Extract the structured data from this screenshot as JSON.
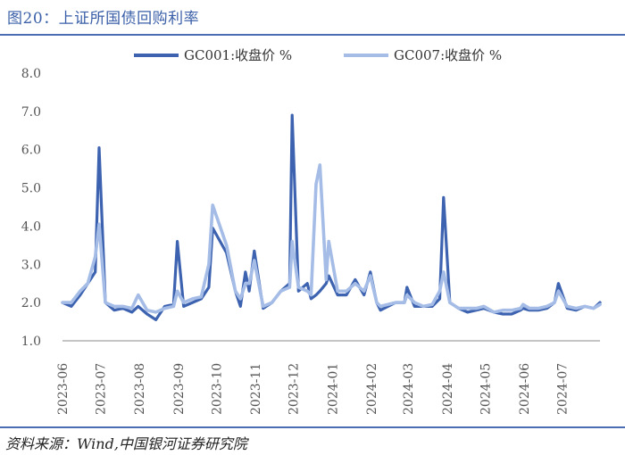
{
  "header": {
    "title": "图20：上证所国债回购利率"
  },
  "footer": {
    "source": "资料来源：Wind,中国银河证券研究院"
  },
  "colors": {
    "gc001": "#3d63b0",
    "gc007": "#a4bce6",
    "rule": "#4a6db3"
  },
  "chart_data": {
    "type": "line",
    "title": "",
    "xlabel": "",
    "ylabel": "",
    "ylim": [
      1.0,
      8.0
    ],
    "yticks": [
      "1.0",
      "2.0",
      "3.0",
      "4.0",
      "5.0",
      "6.0",
      "7.0",
      "8.0"
    ],
    "xticks": [
      "2023-06",
      "2023-07",
      "2023-08",
      "2023-09",
      "2023-10",
      "2023-11",
      "2023-12",
      "2024-01",
      "2024-02",
      "2024-03",
      "2024-04",
      "2024-05",
      "2024-06",
      "2024-07"
    ],
    "legend_position": "top",
    "x": [
      "2023-06-01",
      "2023-06-08",
      "2023-06-15",
      "2023-06-21",
      "2023-06-27",
      "2023-06-30",
      "2023-07-05",
      "2023-07-12",
      "2023-07-19",
      "2023-07-26",
      "2023-07-31",
      "2023-08-07",
      "2023-08-14",
      "2023-08-21",
      "2023-08-28",
      "2023-08-31",
      "2023-09-05",
      "2023-09-12",
      "2023-09-19",
      "2023-09-25",
      "2023-09-28",
      "2023-10-09",
      "2023-10-16",
      "2023-10-20",
      "2023-10-24",
      "2023-10-27",
      "2023-10-31",
      "2023-11-07",
      "2023-11-14",
      "2023-11-21",
      "2023-11-28",
      "2023-11-30",
      "2023-12-05",
      "2023-12-12",
      "2023-12-15",
      "2023-12-19",
      "2023-12-22",
      "2023-12-27",
      "2023-12-29",
      "2024-01-05",
      "2024-01-12",
      "2024-01-19",
      "2024-01-26",
      "2024-01-31",
      "2024-02-05",
      "2024-02-08",
      "2024-02-20",
      "2024-02-27",
      "2024-02-29",
      "2024-03-06",
      "2024-03-13",
      "2024-03-20",
      "2024-03-26",
      "2024-03-29",
      "2024-04-03",
      "2024-04-10",
      "2024-04-17",
      "2024-04-24",
      "2024-04-30",
      "2024-05-08",
      "2024-05-15",
      "2024-05-22",
      "2024-05-29",
      "2024-05-31",
      "2024-06-05",
      "2024-06-12",
      "2024-06-19",
      "2024-06-25",
      "2024-06-28",
      "2024-07-05",
      "2024-07-12",
      "2024-07-19",
      "2024-07-26",
      "2024-07-31"
    ],
    "series": [
      {
        "name": "GC001:收盘价 %",
        "values": [
          2.0,
          1.9,
          2.2,
          2.5,
          2.8,
          6.05,
          2.0,
          1.8,
          1.85,
          1.75,
          1.9,
          1.7,
          1.55,
          1.9,
          1.95,
          3.6,
          1.9,
          2.0,
          2.1,
          2.4,
          3.95,
          3.3,
          2.3,
          1.9,
          2.8,
          2.3,
          3.35,
          1.85,
          2.0,
          2.3,
          2.5,
          6.9,
          2.3,
          2.5,
          2.1,
          2.2,
          2.3,
          2.5,
          2.7,
          2.2,
          2.2,
          2.6,
          2.2,
          2.8,
          2.0,
          1.8,
          2.0,
          2.0,
          2.4,
          1.9,
          1.9,
          1.9,
          2.1,
          4.75,
          2.0,
          1.85,
          1.75,
          1.8,
          1.85,
          1.75,
          1.7,
          1.7,
          1.8,
          1.85,
          1.8,
          1.8,
          1.85,
          2.0,
          2.5,
          1.85,
          1.8,
          1.9,
          1.85,
          2.0
        ]
      },
      {
        "name": "GC007:收盘价 %",
        "values": [
          2.0,
          2.0,
          2.3,
          2.5,
          3.2,
          4.05,
          2.0,
          1.9,
          1.9,
          1.85,
          2.2,
          1.8,
          1.75,
          1.85,
          1.9,
          2.3,
          2.0,
          2.1,
          2.15,
          3.0,
          4.55,
          3.5,
          2.3,
          2.1,
          2.5,
          2.5,
          3.1,
          1.9,
          2.0,
          2.3,
          2.4,
          3.6,
          2.4,
          2.3,
          2.2,
          5.1,
          5.6,
          2.6,
          3.6,
          2.3,
          2.3,
          2.5,
          2.3,
          2.7,
          2.0,
          1.9,
          2.0,
          2.0,
          2.2,
          2.0,
          1.9,
          1.95,
          2.3,
          2.8,
          2.0,
          1.85,
          1.85,
          1.85,
          1.9,
          1.75,
          1.8,
          1.8,
          1.85,
          1.95,
          1.85,
          1.85,
          1.9,
          2.0,
          2.3,
          1.9,
          1.85,
          1.9,
          1.85,
          1.95
        ]
      }
    ]
  }
}
